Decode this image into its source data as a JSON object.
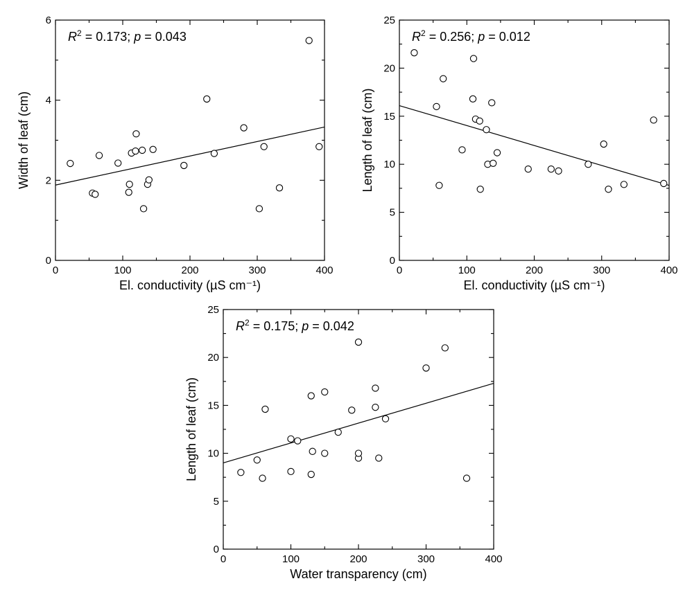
{
  "chart_data": [
    {
      "type": "scatter",
      "xlabel": "El. conductivity (µS cm⁻¹)",
      "ylabel": "Width of leaf (cm)",
      "xlim": [
        0,
        400
      ],
      "ylim": [
        0,
        6
      ],
      "xticks": [
        0,
        100,
        200,
        300,
        400
      ],
      "yticks": [
        0,
        2,
        4,
        6
      ],
      "annotation": {
        "r2_label": "R",
        "r2_sup": "2",
        "r2_value": " = 0.173; ",
        "p_label": "p",
        "p_value": " = 0.043"
      },
      "fit_line": {
        "x": [
          0,
          400
        ],
        "y": [
          1.88,
          3.33
        ]
      },
      "points": [
        {
          "x": 22,
          "y": 2.42
        },
        {
          "x": 55,
          "y": 1.68
        },
        {
          "x": 59,
          "y": 1.65
        },
        {
          "x": 65,
          "y": 2.62
        },
        {
          "x": 93,
          "y": 2.43
        },
        {
          "x": 109,
          "y": 1.7
        },
        {
          "x": 110,
          "y": 1.9
        },
        {
          "x": 113,
          "y": 2.68
        },
        {
          "x": 119,
          "y": 2.73
        },
        {
          "x": 120,
          "y": 3.16
        },
        {
          "x": 129,
          "y": 2.75
        },
        {
          "x": 131,
          "y": 1.29
        },
        {
          "x": 137,
          "y": 1.9
        },
        {
          "x": 139,
          "y": 2.01
        },
        {
          "x": 145,
          "y": 2.77
        },
        {
          "x": 191,
          "y": 2.37
        },
        {
          "x": 225,
          "y": 4.03
        },
        {
          "x": 236,
          "y": 2.67
        },
        {
          "x": 280,
          "y": 3.31
        },
        {
          "x": 303,
          "y": 1.29
        },
        {
          "x": 310,
          "y": 2.84
        },
        {
          "x": 333,
          "y": 1.81
        },
        {
          "x": 377,
          "y": 5.49
        },
        {
          "x": 392,
          "y": 2.84
        }
      ]
    },
    {
      "type": "scatter",
      "xlabel": "El. conductivity (µS cm⁻¹)",
      "ylabel": "Length of leaf (cm)",
      "xlim": [
        0,
        400
      ],
      "ylim": [
        0,
        25
      ],
      "xticks": [
        0,
        100,
        200,
        300,
        400
      ],
      "yticks": [
        0,
        5,
        10,
        15,
        20,
        25
      ],
      "annotation": {
        "r2_label": "R",
        "r2_sup": "2",
        "r2_value": " = 0.256; ",
        "p_label": "p",
        "p_value": " = 0.012"
      },
      "fit_line": {
        "x": [
          0,
          400
        ],
        "y": [
          16.1,
          7.8
        ]
      },
      "points": [
        {
          "x": 22,
          "y": 21.6
        },
        {
          "x": 55,
          "y": 16.0
        },
        {
          "x": 59,
          "y": 7.8
        },
        {
          "x": 65,
          "y": 18.9
        },
        {
          "x": 93,
          "y": 11.5
        },
        {
          "x": 109,
          "y": 16.8
        },
        {
          "x": 110,
          "y": 21.0
        },
        {
          "x": 113,
          "y": 14.7
        },
        {
          "x": 119,
          "y": 14.5
        },
        {
          "x": 120,
          "y": 7.4
        },
        {
          "x": 129,
          "y": 13.6
        },
        {
          "x": 131,
          "y": 10.0
        },
        {
          "x": 137,
          "y": 16.4
        },
        {
          "x": 139,
          "y": 10.1
        },
        {
          "x": 145,
          "y": 11.2
        },
        {
          "x": 191,
          "y": 9.5
        },
        {
          "x": 225,
          "y": 9.5
        },
        {
          "x": 236,
          "y": 9.3
        },
        {
          "x": 280,
          "y": 10.0
        },
        {
          "x": 303,
          "y": 12.1
        },
        {
          "x": 310,
          "y": 7.4
        },
        {
          "x": 333,
          "y": 7.9
        },
        {
          "x": 377,
          "y": 14.6
        },
        {
          "x": 392,
          "y": 8.0
        }
      ]
    },
    {
      "type": "scatter",
      "xlabel": "Water transparency (cm)",
      "ylabel": "Length of leaf (cm)",
      "xlim": [
        0,
        400
      ],
      "ylim": [
        0,
        25
      ],
      "xticks": [
        0,
        100,
        200,
        300,
        400
      ],
      "yticks": [
        0,
        5,
        10,
        15,
        20,
        25
      ],
      "annotation": {
        "r2_label": "R",
        "r2_sup": "2",
        "r2_value": " = 0.175; ",
        "p_label": "p",
        "p_value": " = 0.042"
      },
      "fit_line": {
        "x": [
          0,
          400
        ],
        "y": [
          9.0,
          17.3
        ]
      },
      "points": [
        {
          "x": 26,
          "y": 8.0
        },
        {
          "x": 50,
          "y": 9.3
        },
        {
          "x": 58,
          "y": 7.4
        },
        {
          "x": 62,
          "y": 14.6
        },
        {
          "x": 100,
          "y": 8.1
        },
        {
          "x": 100,
          "y": 11.5
        },
        {
          "x": 110,
          "y": 11.3
        },
        {
          "x": 130,
          "y": 7.8
        },
        {
          "x": 130,
          "y": 16.0
        },
        {
          "x": 132,
          "y": 10.2
        },
        {
          "x": 150,
          "y": 10.0
        },
        {
          "x": 150,
          "y": 16.4
        },
        {
          "x": 170,
          "y": 12.2
        },
        {
          "x": 190,
          "y": 14.5
        },
        {
          "x": 200,
          "y": 9.5
        },
        {
          "x": 200,
          "y": 10.0
        },
        {
          "x": 200,
          "y": 21.6
        },
        {
          "x": 225,
          "y": 14.8
        },
        {
          "x": 225,
          "y": 16.8
        },
        {
          "x": 230,
          "y": 9.5
        },
        {
          "x": 240,
          "y": 13.6
        },
        {
          "x": 300,
          "y": 18.9
        },
        {
          "x": 328,
          "y": 21.0
        },
        {
          "x": 360,
          "y": 7.4
        }
      ]
    }
  ]
}
